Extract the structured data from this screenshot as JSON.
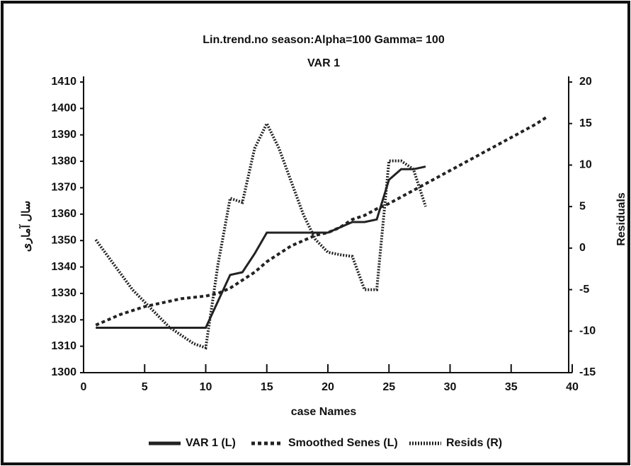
{
  "chart_data": {
    "type": "line",
    "title": "Lin.trend.no season:Alpha=100 Gamma= 100",
    "subtitle": "VAR 1",
    "xlabel": "case Names",
    "ylabel": "سال آماری",
    "y2label": "Residuals",
    "xlim": [
      0,
      40
    ],
    "xticks": [
      0,
      5,
      10,
      15,
      20,
      25,
      30,
      35,
      40
    ],
    "ylim": [
      1300,
      1410
    ],
    "yticks": [
      1300,
      1310,
      1320,
      1330,
      1340,
      1350,
      1360,
      1370,
      1380,
      1390,
      1400,
      1410
    ],
    "y2lim": [
      -15,
      20
    ],
    "y2ticks": [
      -15,
      -10,
      -5,
      0,
      5,
      10,
      15,
      20
    ],
    "legend": "bottom",
    "series": [
      {
        "name": "VAR 1 (L)",
        "color": "#222222",
        "dash": "solid",
        "axis": "y",
        "x": [
          1,
          2,
          3,
          4,
          5,
          6,
          7,
          8,
          9,
          10,
          11,
          12,
          13,
          14,
          15,
          16,
          17,
          18,
          19,
          20,
          21,
          22,
          23,
          24,
          25,
          26,
          27,
          28
        ],
        "values": [
          1317,
          1317,
          1317,
          1317,
          1317,
          1317,
          1317,
          1317,
          1317,
          1317,
          1327,
          1337,
          1338,
          1345,
          1353,
          1353,
          1353,
          1353,
          1353,
          1353,
          1355,
          1357,
          1357,
          1358,
          1373,
          1377,
          1377,
          1378
        ]
      },
      {
        "name": "Smoothed Senes (L)",
        "color": "#222222",
        "dash": "dashed",
        "axis": "y",
        "x": [
          1,
          2,
          3,
          4,
          5,
          6,
          7,
          8,
          9,
          10,
          11,
          12,
          13,
          14,
          15,
          16,
          17,
          18,
          19,
          20,
          21,
          22,
          23,
          24,
          25,
          26,
          27,
          28,
          29,
          30,
          31,
          32,
          33,
          34,
          35,
          36,
          37,
          38
        ],
        "values": [
          1318,
          1320,
          1322,
          1323.5,
          1325,
          1326,
          1327,
          1328,
          1328.5,
          1329,
          1330,
          1332,
          1335,
          1338,
          1342,
          1345,
          1348,
          1350,
          1352,
          1353,
          1355,
          1358,
          1359.5,
          1362,
          1364,
          1366.5,
          1369,
          1371.5,
          1374,
          1376.5,
          1379,
          1381.5,
          1384,
          1386.5,
          1389,
          1391.5,
          1394,
          1397
        ]
      },
      {
        "name": "Resids (R)",
        "color": "#222222",
        "dash": "dotted",
        "axis": "y2",
        "x": [
          1,
          2,
          3,
          4,
          5,
          6,
          7,
          8,
          9,
          10,
          11,
          12,
          13,
          14,
          15,
          16,
          17,
          18,
          19,
          20,
          21,
          22,
          23,
          24,
          25,
          26,
          27,
          28
        ],
        "values": [
          1,
          -1,
          -3,
          -5,
          -6.5,
          -8,
          -9.5,
          -10.5,
          -11.5,
          -12,
          -2,
          6,
          5.5,
          12,
          15,
          12,
          8,
          4,
          1,
          -0.5,
          -0.8,
          -1,
          -5,
          -5,
          10.5,
          10.5,
          9.5,
          5
        ]
      }
    ]
  }
}
